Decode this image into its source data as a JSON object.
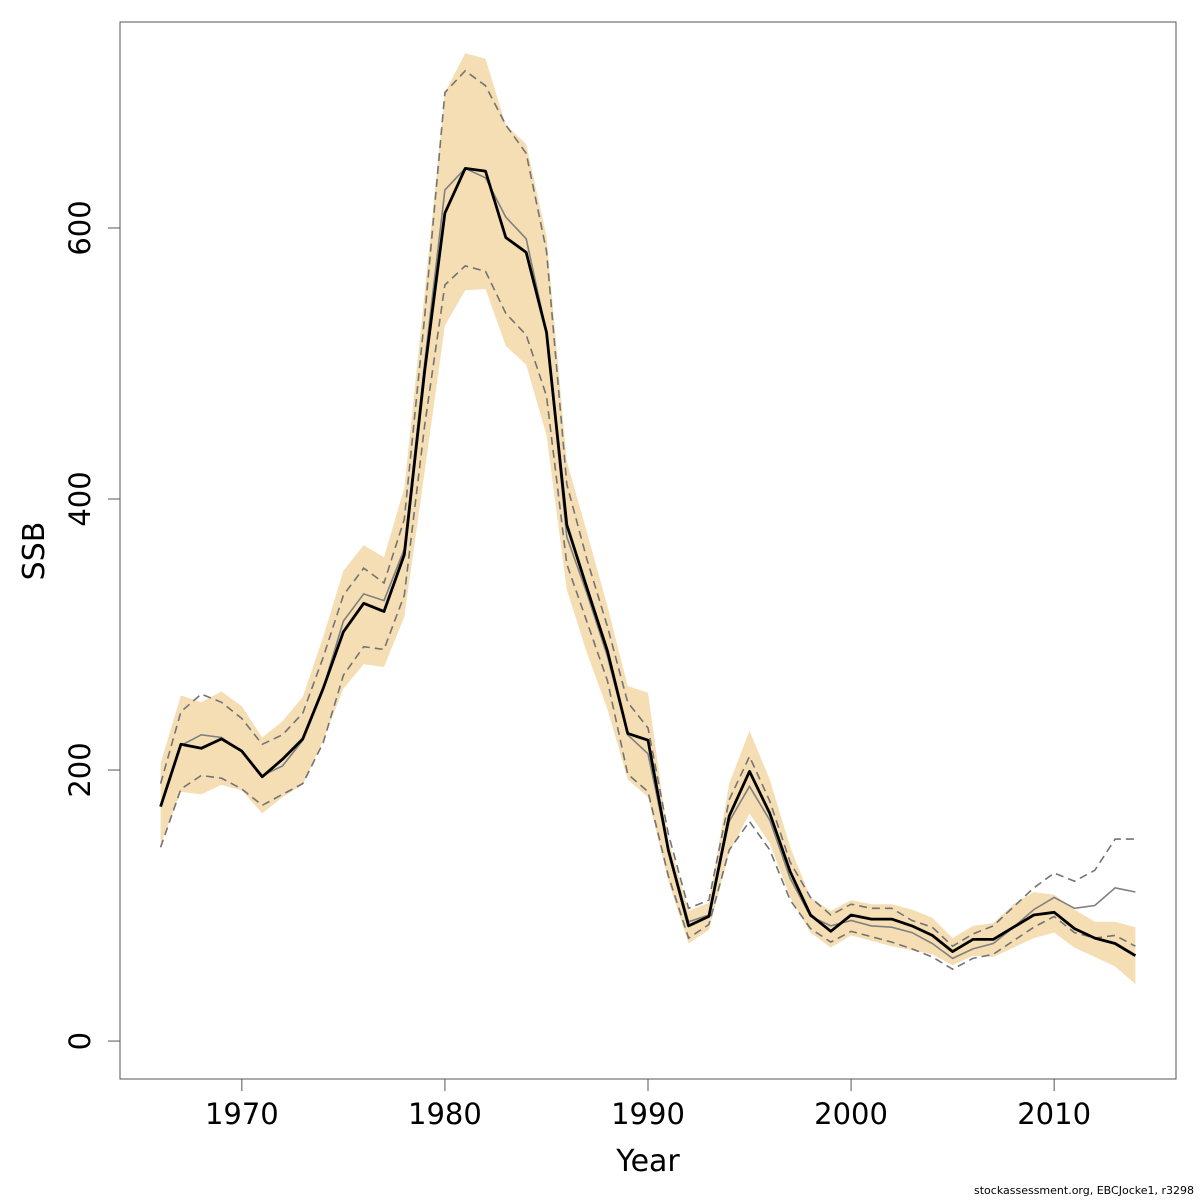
{
  "chart_data": {
    "type": "line",
    "xlabel": "Year",
    "ylabel": "SSB",
    "xlim": [
      1964,
      2016
    ],
    "ylim": [
      -28,
      752
    ],
    "x_ticks": [
      1970,
      1980,
      1990,
      2000,
      2010
    ],
    "y_ticks": [
      0,
      200,
      400,
      600
    ],
    "grid": false,
    "colors": {
      "band": "#f5deb3",
      "estimate": "#000000",
      "retro": "#808080"
    },
    "x": [
      1966,
      1967,
      1968,
      1969,
      1970,
      1971,
      1972,
      1973,
      1974,
      1975,
      1976,
      1977,
      1978,
      1979,
      1980,
      1981,
      1982,
      1983,
      1984,
      1985,
      1986,
      1987,
      1988,
      1989,
      1990,
      1991,
      1992,
      1993,
      1994,
      1995,
      1996,
      1997,
      1998,
      1999,
      2000,
      2001,
      2002,
      2003,
      2004,
      2005,
      2006,
      2007,
      2008,
      2009,
      2010,
      2011,
      2012,
      2013,
      2014
    ],
    "band": {
      "upper": [
        205,
        255,
        250,
        258,
        247,
        224,
        236,
        254,
        298,
        347,
        366,
        357,
        408,
        552,
        700,
        729,
        725,
        676,
        662,
        594,
        428,
        375,
        321,
        262,
        257,
        149,
        96,
        102,
        190,
        229,
        193,
        143,
        106,
        96,
        104,
        101,
        101,
        97,
        91,
        76,
        85,
        87,
        101,
        110,
        108,
        97,
        88,
        88,
        84
      ],
      "lower": [
        145,
        184,
        182,
        189,
        185,
        168,
        180,
        189,
        222,
        260,
        278,
        276,
        313,
        420,
        528,
        554,
        555,
        513,
        499,
        447,
        333,
        286,
        245,
        193,
        180,
        118,
        72,
        82,
        139,
        168,
        146,
        106,
        80,
        69,
        78,
        74,
        70,
        67,
        64,
        56,
        63,
        62,
        69,
        76,
        80,
        69,
        62,
        55,
        42
      ]
    },
    "series": [
      {
        "style": "thick-solid",
        "values": [
          173,
          219,
          216,
          223,
          214,
          195,
          208,
          223,
          260,
          302,
          323,
          317,
          359,
          494,
          611,
          644,
          642,
          593,
          582,
          523,
          381,
          334,
          288,
          227,
          222,
          141,
          85,
          92,
          166,
          199,
          168,
          125,
          93,
          81,
          93,
          90,
          90,
          85,
          78,
          66,
          75,
          75,
          84,
          93,
          95,
          83,
          76,
          72,
          63
        ]
      },
      {
        "style": "thin-solid",
        "values": [
          173,
          218,
          226,
          224,
          214,
          196,
          203,
          222,
          260,
          310,
          330,
          325,
          363,
          500,
          628,
          644,
          637,
          608,
          592,
          523,
          372,
          330,
          284,
          226,
          212,
          141,
          88,
          93,
          162,
          188,
          163,
          120,
          92,
          85,
          89,
          85,
          84,
          80,
          72,
          61,
          68,
          72,
          84,
          97,
          106,
          98,
          100,
          113,
          110
        ]
      },
      {
        "style": "dashed-upper",
        "values": [
          190,
          243,
          256,
          250,
          238,
          219,
          226,
          242,
          283,
          329,
          349,
          338,
          385,
          534,
          700,
          716,
          705,
          676,
          655,
          583,
          411,
          355,
          306,
          250,
          231,
          153,
          98,
          104,
          178,
          210,
          177,
          132,
          106,
          93,
          101,
          98,
          98,
          89,
          84,
          70,
          79,
          85,
          99,
          113,
          124,
          118,
          126,
          149,
          149
        ]
      },
      {
        "style": "dashed-lower",
        "values": [
          143,
          186,
          196,
          194,
          186,
          174,
          182,
          190,
          220,
          270,
          291,
          289,
          329,
          454,
          558,
          572,
          568,
          537,
          521,
          476,
          352,
          309,
          266,
          197,
          184,
          122,
          76,
          86,
          141,
          162,
          141,
          104,
          83,
          73,
          81,
          77,
          73,
          68,
          62,
          53,
          61,
          64,
          74,
          84,
          92,
          80,
          76,
          78,
          70
        ]
      }
    ]
  },
  "footer": "stockassessment.org, EBCJocke1, r3298"
}
